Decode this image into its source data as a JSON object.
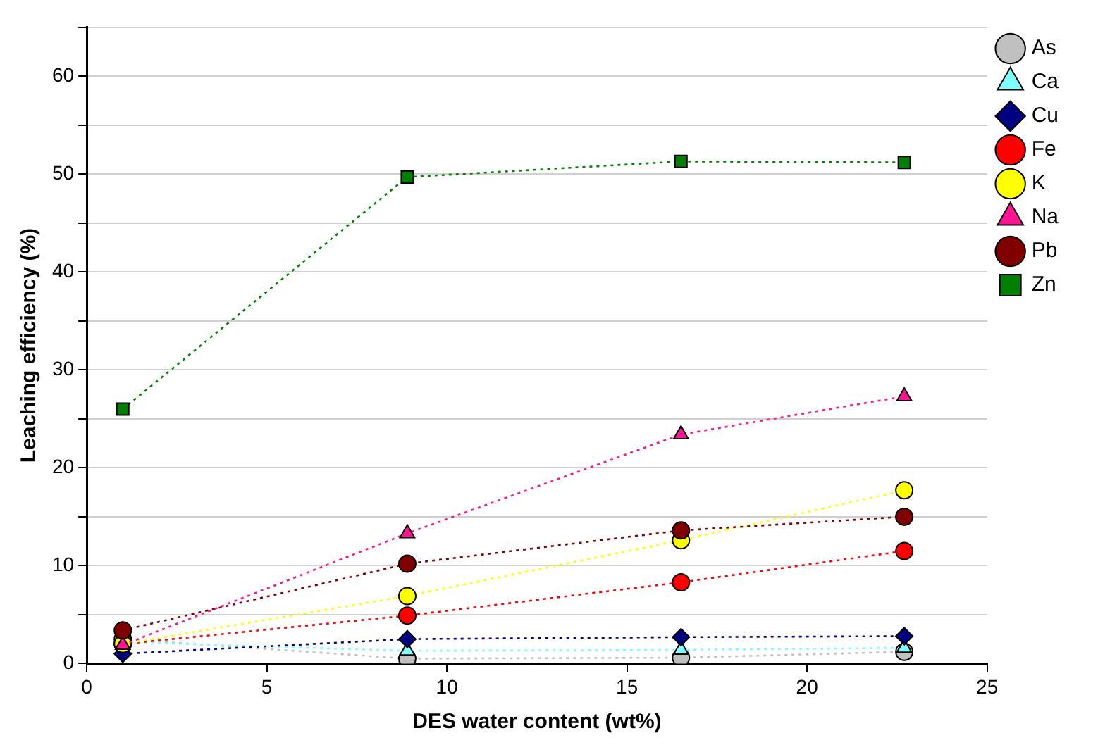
{
  "chart_data": {
    "type": "line",
    "xlabel": "DES water content (wt%)",
    "ylabel": "Leaching efficiency (%)",
    "x": [
      1,
      8.9,
      16.5,
      22.7
    ],
    "series": [
      {
        "name": "As",
        "color": "#c0c0c0",
        "marker": "circle",
        "values": [
          2.5,
          0.5,
          0.6,
          1.2
        ]
      },
      {
        "name": "Ca",
        "color": "#80ffff",
        "marker": "triangle",
        "values": [
          2.2,
          1.3,
          1.4,
          1.6
        ]
      },
      {
        "name": "Cu",
        "color": "#000080",
        "marker": "diamond",
        "values": [
          1.0,
          2.5,
          2.7,
          2.8
        ]
      },
      {
        "name": "Fe",
        "color": "#ff0000",
        "marker": "circle",
        "values": [
          2.0,
          4.9,
          8.3,
          11.5
        ]
      },
      {
        "name": "K",
        "color": "#ffff00",
        "marker": "circle",
        "values": [
          2.0,
          6.9,
          12.6,
          17.7
        ]
      },
      {
        "name": "Na",
        "color": "#ff1493",
        "marker": "triangle",
        "values": [
          1.9,
          13.3,
          23.4,
          27.3
        ]
      },
      {
        "name": "Pb",
        "color": "#800000",
        "marker": "circle",
        "values": [
          3.4,
          10.2,
          13.6,
          15.0
        ]
      },
      {
        "name": "Zn",
        "color": "#008000",
        "marker": "square",
        "values": [
          26,
          49.7,
          51.3,
          51.2
        ]
      }
    ],
    "xlim": [
      0,
      25
    ],
    "xticks": [
      0,
      5,
      10,
      15,
      20,
      25
    ],
    "ylim": [
      0,
      65
    ],
    "yticks": [
      0,
      {
        "value": 5,
        "label": null
      },
      10,
      {
        "value": 15,
        "label": null
      },
      20,
      {
        "value": 25,
        "label": null
      },
      30,
      {
        "value": 35,
        "label": null
      },
      40,
      {
        "value": 45,
        "label": null
      },
      50,
      {
        "value": 55,
        "label": null
      },
      60,
      {
        "value": 65,
        "label": null
      }
    ],
    "grid": "y",
    "legend": "right",
    "line_style": "dotted"
  }
}
